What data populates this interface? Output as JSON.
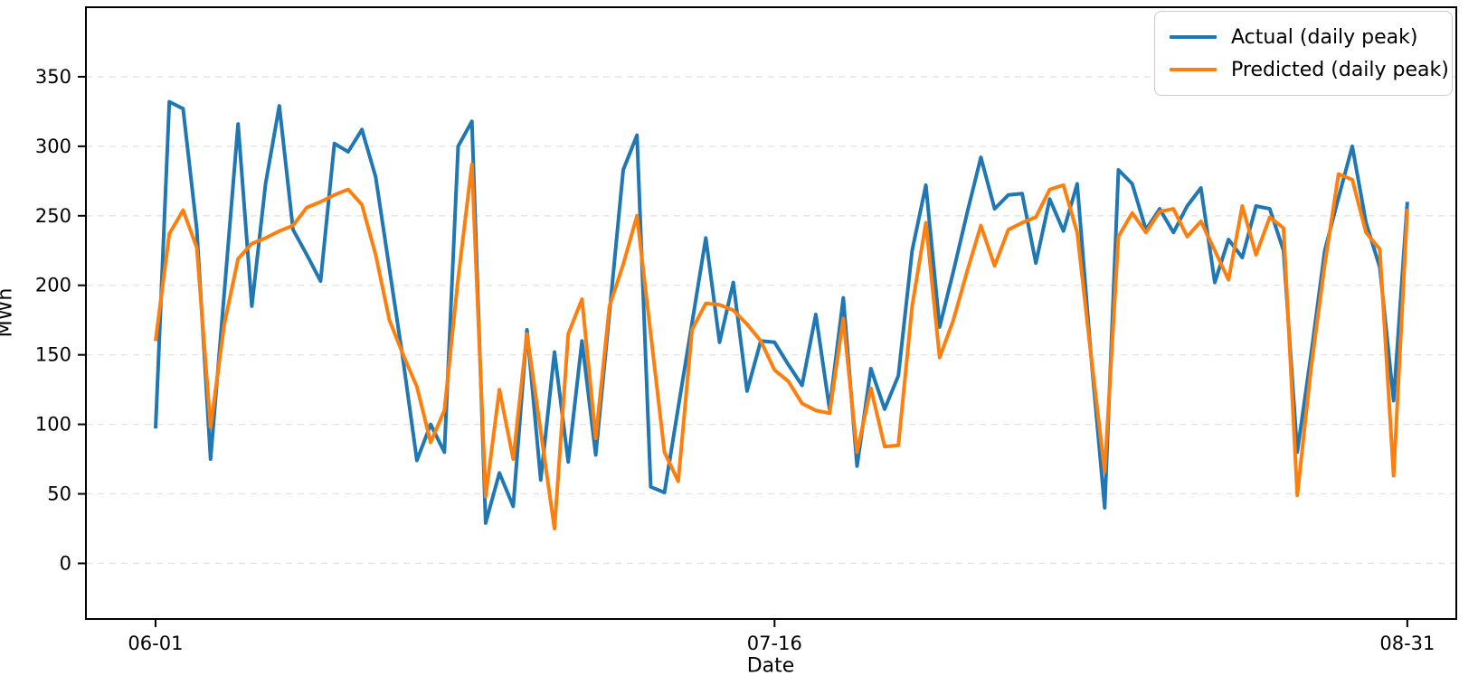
{
  "chart_data": {
    "type": "line",
    "title": "",
    "xlabel": "Date",
    "ylabel": "MWh",
    "x_tick_labels": [
      "06-01",
      "07-16",
      "08-31"
    ],
    "x_tick_days": [
      0,
      45,
      91
    ],
    "y_ticks": [
      0,
      50,
      100,
      150,
      200,
      250,
      300,
      350
    ],
    "ylim": [
      -40,
      400
    ],
    "xlim_days": [
      -5.06,
      94.56
    ],
    "n_points": 92,
    "grid": "horizontal-dashed",
    "grid_color": "#e2e2e2",
    "background": "#ffffff",
    "legend_position": "upper-right",
    "series": [
      {
        "name": "Actual (daily peak)",
        "color": "#1f77b4",
        "values": [
          97,
          332,
          327,
          240,
          75,
          195,
          316,
          185,
          273,
          329,
          240,
          222,
          203,
          302,
          296,
          312,
          278,
          212,
          146,
          74,
          100,
          80,
          300,
          318,
          29,
          65,
          41,
          168,
          60,
          152,
          73,
          160,
          78,
          180,
          283,
          308,
          55,
          51,
          112,
          173,
          234,
          159,
          202,
          124,
          160,
          159,
          143,
          128,
          179,
          111,
          191,
          70,
          140,
          111,
          135,
          225,
          272,
          170,
          210,
          252,
          292,
          255,
          265,
          266,
          216,
          262,
          239,
          273,
          150,
          40,
          283,
          273,
          240,
          255,
          238,
          257,
          270,
          202,
          233,
          220,
          257,
          255,
          225,
          80,
          150,
          225,
          263,
          300,
          245,
          213,
          117,
          260
        ]
      },
      {
        "name": "Predicted (daily peak)",
        "color": "#ff7f0e",
        "values": [
          160,
          237,
          254,
          227,
          98,
          172,
          219,
          230,
          234,
          239,
          243,
          256,
          260,
          265,
          269,
          258,
          222,
          175,
          150,
          127,
          87,
          110,
          205,
          287,
          48,
          125,
          75,
          165,
          95,
          25,
          165,
          190,
          90,
          185,
          215,
          250,
          165,
          80,
          59,
          168,
          187,
          186,
          182,
          172,
          160,
          139,
          131,
          115,
          110,
          108,
          176,
          80,
          126,
          84,
          85,
          185,
          245,
          148,
          175,
          210,
          243,
          214,
          240,
          245,
          249,
          269,
          272,
          238,
          150,
          66,
          235,
          252,
          238,
          253,
          255,
          235,
          246,
          225,
          204,
          257,
          222,
          249,
          241,
          49,
          140,
          215,
          280,
          276,
          238,
          226,
          63,
          255
        ]
      }
    ],
    "legend": {
      "actual_label": "Actual (daily peak)",
      "predicted_label": "Predicted (daily peak)"
    }
  }
}
